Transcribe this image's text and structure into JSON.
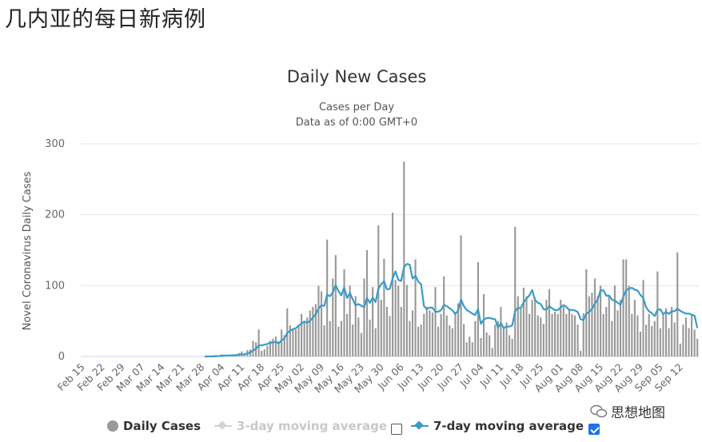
{
  "page": {
    "title": "几内亚的每日新病例"
  },
  "chart_data": {
    "type": "bar",
    "title": "Daily New Cases",
    "subtitle_line1": "Cases per Day",
    "subtitle_line2": "Data as of 0:00 GMT+0",
    "ylabel": "Novel Coronavirus Daily Cases",
    "xlabel": "",
    "ylim": [
      0,
      300
    ],
    "yticks": [
      0,
      100,
      200,
      300
    ],
    "start_date": "Feb 15",
    "xtick_labels": [
      "Feb 15",
      "Feb 22",
      "Feb 29",
      "Mar 07",
      "Mar 14",
      "Mar 21",
      "Mar 28",
      "Apr 04",
      "Apr 11",
      "Apr 18",
      "Apr 25",
      "May 02",
      "May 09",
      "May 16",
      "May 23",
      "May 30",
      "Jun 06",
      "Jun 13",
      "Jun 20",
      "Jun 27",
      "Jul 04",
      "Jul 11",
      "Jul 18",
      "Jul 25",
      "Aug 01",
      "Aug 08",
      "Aug 15",
      "Aug 22",
      "Aug 29",
      "Sep 05",
      "Sep 12"
    ],
    "series": [
      {
        "name": "Daily Cases",
        "type": "bar",
        "color": "#999999",
        "values": [
          0,
          0,
          0,
          0,
          0,
          0,
          0,
          0,
          0,
          0,
          0,
          0,
          0,
          0,
          0,
          0,
          0,
          0,
          0,
          0,
          0,
          0,
          0,
          0,
          0,
          0,
          0,
          0,
          0,
          0,
          0,
          0,
          0,
          0,
          0,
          0,
          0,
          0,
          0,
          0,
          0,
          0,
          0,
          0,
          0,
          1,
          0,
          2,
          1,
          3,
          2,
          1,
          1,
          2,
          3,
          5,
          7,
          3,
          9,
          10,
          22,
          20,
          38,
          8,
          10,
          15,
          22,
          25,
          28,
          21,
          38,
          30,
          68,
          44,
          40,
          38,
          45,
          60,
          50,
          55,
          65,
          70,
          74,
          100,
          92,
          44,
          165,
          50,
          110,
          143,
          42,
          50,
          123,
          60,
          100,
          45,
          85,
          55,
          33,
          110,
          150,
          52,
          98,
          40,
          185,
          80,
          138,
          70,
          57,
          203,
          108,
          100,
          70,
          275,
          101,
          50,
          65,
          137,
          42,
          45,
          60,
          70,
          65,
          62,
          98,
          42,
          60,
          113,
          58,
          44,
          40,
          63,
          75,
          171,
          46,
          20,
          28,
          20,
          50,
          133,
          26,
          88,
          34,
          30,
          12,
          45,
          50,
          70,
          40,
          48,
          30,
          25,
          183,
          85,
          67,
          97,
          85,
          60,
          80,
          83,
          58,
          55,
          46,
          80,
          95,
          60,
          63,
          60,
          80,
          70,
          60,
          67,
          60,
          58,
          45,
          8,
          61,
          123,
          85,
          90,
          110,
          85,
          100,
          60,
          70,
          86,
          50,
          100,
          65,
          80,
          137,
          137,
          100,
          60,
          80,
          58,
          35,
          108,
          45,
          60,
          43,
          50,
          120,
          40,
          60,
          68,
          40,
          70,
          48,
          147,
          18,
          45,
          55,
          40,
          60,
          38,
          25
        ]
      },
      {
        "name": "3-day moving average",
        "type": "line",
        "color": "#cccccc",
        "enabled": false
      },
      {
        "name": "7-day moving average",
        "type": "line",
        "color": "#3a9bc7",
        "enabled": true
      }
    ],
    "legend": {
      "position": "bottom"
    }
  },
  "watermark": {
    "text": "思想地图"
  }
}
